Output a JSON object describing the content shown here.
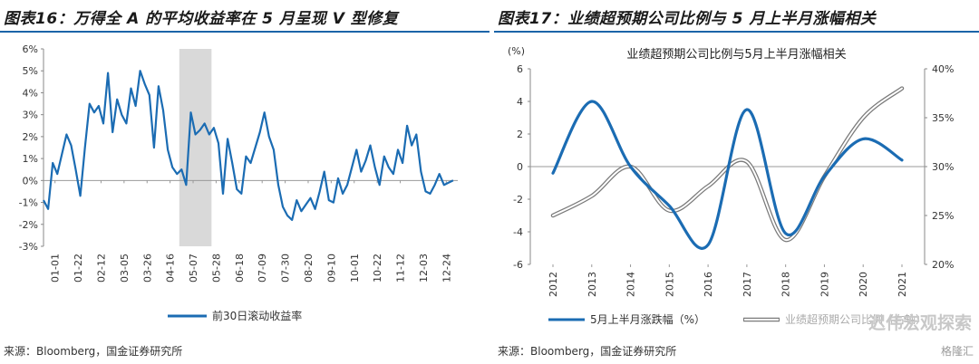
{
  "figures": [
    {
      "title": "图表16：万得全 A 的平均收益率在 5 月呈现 V 型修复",
      "source": "来源：Bloomberg，国金证券研究所",
      "chart_data": {
        "type": "line",
        "title": "",
        "ylabel": "",
        "ylim": [
          -3,
          6
        ],
        "yticks": [
          "-3%",
          "-2%",
          "-1%",
          "0%",
          "1%",
          "2%",
          "3%",
          "4%",
          "5%",
          "6%"
        ],
        "xticks": [
          "01-01",
          "01-22",
          "02-12",
          "03-05",
          "03-26",
          "04-16",
          "05-07",
          "05-28",
          "06-18",
          "07-09",
          "07-30",
          "08-20",
          "09-10",
          "10-01",
          "10-22",
          "11-12",
          "12-03",
          "12-24"
        ],
        "shaded_region": {
          "from": 59,
          "to": 73
        },
        "series": [
          {
            "name": "前30日滚动收益率",
            "color": "#1b6cb3",
            "x": [
              0,
              2,
              4,
              6,
              8,
              10,
              12,
              14,
              16,
              18,
              20,
              22,
              24,
              26,
              28,
              30,
              32,
              34,
              36,
              38,
              40,
              42,
              44,
              46,
              48,
              50,
              52,
              54,
              56,
              58,
              60,
              62,
              64,
              66,
              68,
              70,
              72,
              74,
              76,
              78,
              80,
              82,
              84,
              86,
              88,
              90,
              92,
              94,
              96,
              98,
              100,
              102,
              104,
              106,
              108,
              110,
              112,
              114,
              116,
              118,
              120,
              122,
              124,
              126,
              128,
              130,
              132,
              134,
              136,
              138,
              140,
              142,
              144,
              146,
              148,
              150,
              152,
              154,
              156,
              158,
              160,
              162,
              164,
              166,
              168,
              170,
              172,
              174,
              176,
              178
            ],
            "values": [
              -0.9,
              -1.3,
              0.8,
              0.3,
              1.2,
              2.1,
              1.6,
              0.5,
              -0.7,
              1.5,
              3.5,
              3.1,
              3.4,
              2.6,
              4.9,
              2.2,
              3.7,
              3.0,
              2.6,
              4.2,
              3.4,
              5.0,
              4.4,
              3.9,
              1.5,
              4.3,
              3.2,
              1.4,
              0.6,
              0.3,
              0.5,
              -0.2,
              3.1,
              2.1,
              2.3,
              2.6,
              2.1,
              2.4,
              1.7,
              -0.6,
              1.9,
              0.8,
              -0.4,
              -0.6,
              1.1,
              0.8,
              1.5,
              2.2,
              3.1,
              2.0,
              1.4,
              -0.2,
              -1.2,
              -1.6,
              -1.8,
              -0.9,
              -1.4,
              -1.1,
              -0.8,
              -1.3,
              -0.5,
              0.4,
              -0.9,
              -1.0,
              0.1,
              -0.6,
              -0.2,
              0.6,
              1.4,
              0.4,
              0.9,
              1.6,
              0.6,
              -0.2,
              1.1,
              0.6,
              0.3,
              1.4,
              0.8,
              2.5,
              1.6,
              2.1,
              0.4,
              -0.5,
              -0.6,
              -0.2,
              0.3,
              -0.2,
              -0.1,
              0.0
            ]
          }
        ],
        "legend": "bottom"
      }
    },
    {
      "title": "图表17：业绩超预期公司比例与 5 月上半月涨幅相关",
      "source": "来源：Bloomberg，国金证券研究所",
      "chart_data": {
        "type": "line",
        "title": "业绩超预期公司比例与5月上半月涨幅相关",
        "ylabel_left": "(%)",
        "ylim_left": [
          -6,
          6
        ],
        "yticks_left": [
          "-6",
          "-4",
          "-2",
          "0",
          "2",
          "4",
          "6"
        ],
        "ylim_right": [
          20,
          40
        ],
        "yticks_right": [
          "20%",
          "25%",
          "30%",
          "35%",
          "40%"
        ],
        "categories": [
          "2012",
          "2013",
          "2014",
          "2015",
          "2016",
          "2017",
          "2018",
          "2019",
          "2020",
          "2021"
        ],
        "series": [
          {
            "name": "5月上半月涨跌幅（%）",
            "axis": "left",
            "color": "#1b6cb3",
            "values": [
              -0.4,
              4.0,
              0.0,
              -2.4,
              -4.8,
              3.5,
              -4.1,
              -0.6,
              1.7,
              0.4
            ]
          },
          {
            "name": "业绩超预期公司比例（右轴）",
            "axis": "right",
            "color": "#b8b8b8",
            "values": [
              25.0,
              27.0,
              30.0,
              25.5,
              28.0,
              30.5,
              22.5,
              29.0,
              35.0,
              38.0
            ]
          }
        ],
        "legend": "bottom"
      }
    }
  ],
  "watermark": "迟伟宏观探索",
  "brand": "格隆汇"
}
